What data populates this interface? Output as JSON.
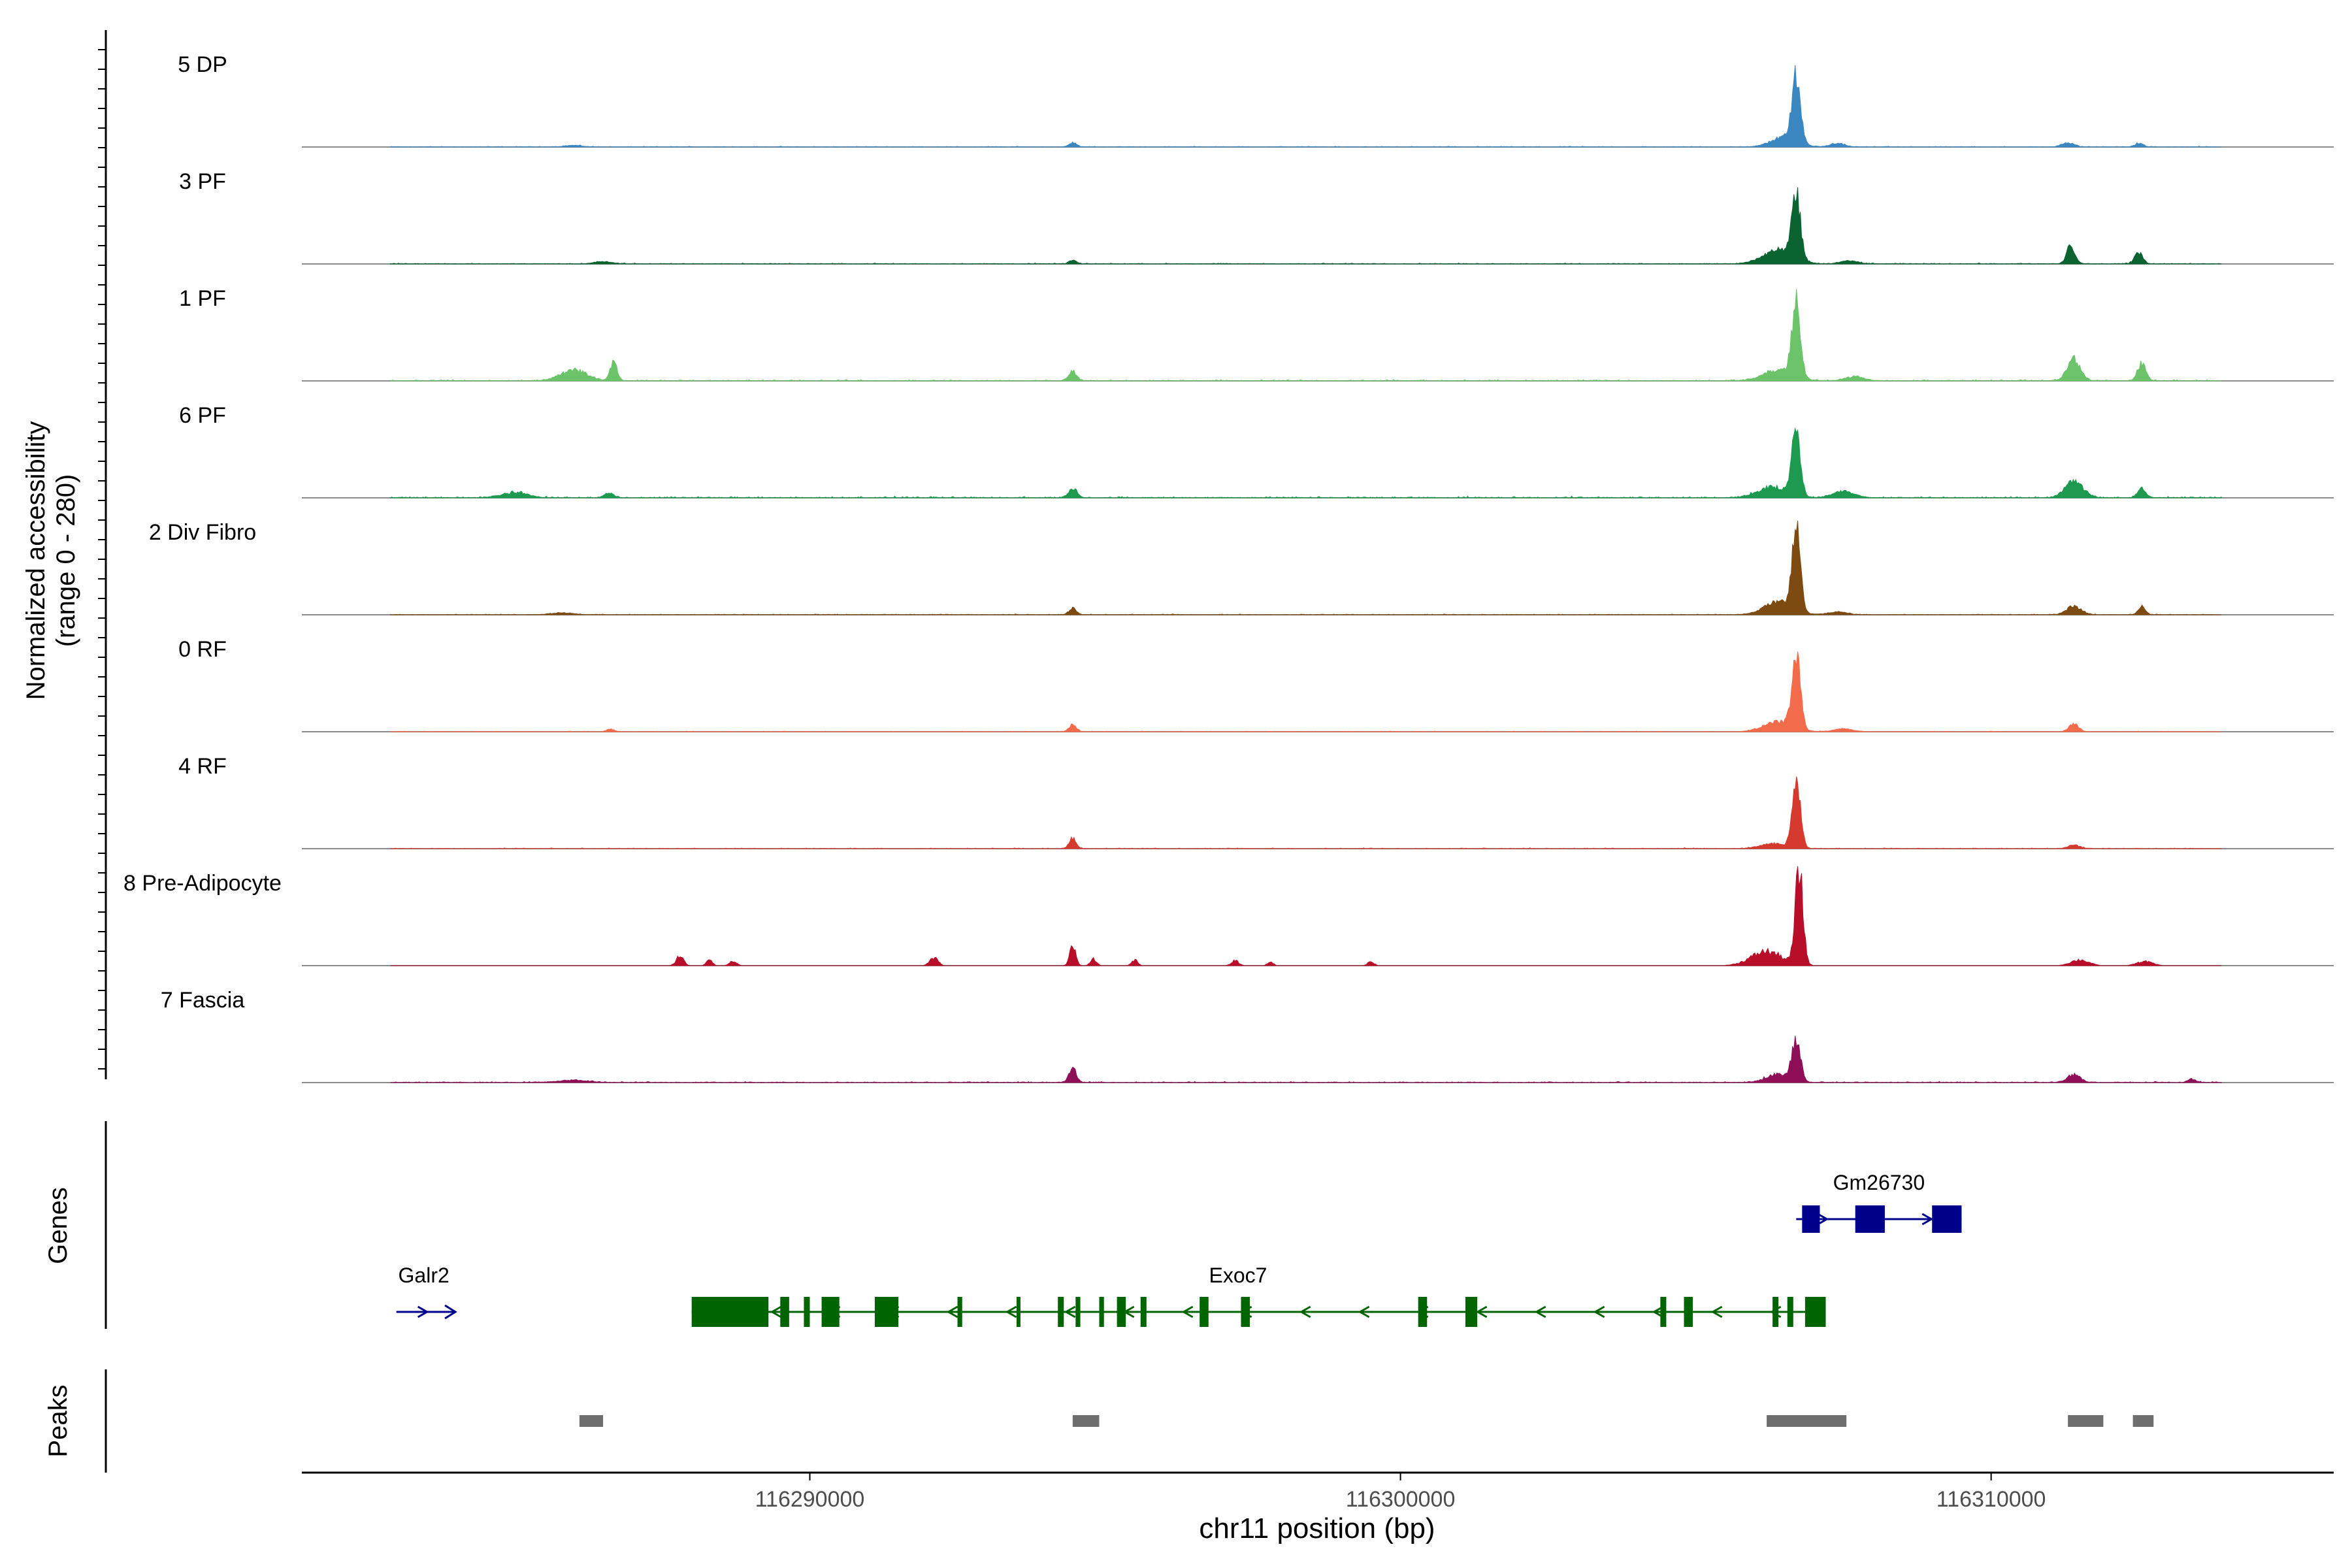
{
  "chart_data": {
    "type": "area",
    "title": "",
    "ylabel_line1": "Normalized accessibility",
    "ylabel_line2": "(range 0 - 280)",
    "ylim": [
      0,
      280
    ],
    "xlabel": "chr11 position (bp)",
    "xlim": [
      116281400,
      116315800
    ],
    "x_ticks": [
      116290000,
      116300000,
      116310000
    ],
    "x_tick_labels": [
      "116290000",
      "116300000",
      "116310000"
    ],
    "series": [
      {
        "name": "5 DP",
        "color": "#3A87C1",
        "peaks": [
          [
            116286000,
            4,
            150
          ],
          [
            116294450,
            12,
            60
          ],
          [
            116306500,
            28,
            220
          ],
          [
            116306700,
            185,
            70
          ],
          [
            116307400,
            10,
            120
          ],
          [
            116311300,
            12,
            100
          ],
          [
            116312500,
            10,
            70
          ]
        ],
        "noise": 2.2
      },
      {
        "name": "3 PF",
        "color": "#0A6330",
        "peaks": [
          [
            116286500,
            6,
            150
          ],
          [
            116294450,
            10,
            60
          ],
          [
            116306400,
            38,
            260
          ],
          [
            116306700,
            185,
            70
          ],
          [
            116307600,
            8,
            150
          ],
          [
            116311350,
            50,
            70
          ],
          [
            116312500,
            30,
            70
          ]
        ],
        "noise": 2.5
      },
      {
        "name": "1 PF",
        "color": "#6CC36A",
        "peaks": [
          [
            116286000,
            30,
            220
          ],
          [
            116286680,
            50,
            60
          ],
          [
            116294450,
            26,
            70
          ],
          [
            116306400,
            30,
            250
          ],
          [
            116306700,
            222,
            70
          ],
          [
            116307700,
            12,
            150
          ],
          [
            116311400,
            60,
            110
          ],
          [
            116312550,
            48,
            70
          ]
        ],
        "noise": 3.5
      },
      {
        "name": "6 PF",
        "color": "#1D9A50",
        "peaks": [
          [
            116285000,
            14,
            220
          ],
          [
            116286600,
            12,
            80
          ],
          [
            116294450,
            26,
            70
          ],
          [
            116306300,
            30,
            250
          ],
          [
            116306700,
            185,
            70
          ],
          [
            116307500,
            18,
            180
          ],
          [
            116311400,
            45,
            150
          ],
          [
            116312550,
            26,
            70
          ]
        ],
        "noise": 4
      },
      {
        "name": "2 Div Fibro",
        "color": "#7D4A12",
        "peaks": [
          [
            116285800,
            5,
            200
          ],
          [
            116294450,
            18,
            60
          ],
          [
            116306400,
            36,
            240
          ],
          [
            116306700,
            228,
            70
          ],
          [
            116307400,
            8,
            150
          ],
          [
            116311400,
            24,
            120
          ],
          [
            116312550,
            22,
            60
          ]
        ],
        "noise": 2.2
      },
      {
        "name": "0 RF",
        "color": "#F26B4A",
        "peaks": [
          [
            116286620,
            8,
            60
          ],
          [
            116294450,
            20,
            60
          ],
          [
            116306400,
            28,
            240
          ],
          [
            116306700,
            210,
            70
          ],
          [
            116307500,
            8,
            150
          ],
          [
            116311400,
            22,
            80
          ]
        ],
        "noise": 1.8
      },
      {
        "name": "4 RF",
        "color": "#D63A2E",
        "peaks": [
          [
            116294450,
            28,
            60
          ],
          [
            116306300,
            14,
            200
          ],
          [
            116306700,
            185,
            70
          ],
          [
            116311400,
            10,
            100
          ]
        ],
        "noise": 2.2
      },
      {
        "name": "8 Pre-Adipocyte",
        "color": "#B80E2A",
        "peaks": [
          [
            116287800,
            28,
            60
          ],
          [
            116288300,
            18,
            50
          ],
          [
            116288700,
            12,
            60
          ],
          [
            116292100,
            22,
            70
          ],
          [
            116294450,
            55,
            50
          ],
          [
            116294800,
            20,
            50
          ],
          [
            116295500,
            16,
            50
          ],
          [
            116297200,
            14,
            60
          ],
          [
            116297800,
            10,
            50
          ],
          [
            116299500,
            12,
            50
          ],
          [
            116306200,
            40,
            260
          ],
          [
            116306750,
            265,
            65
          ],
          [
            116311500,
            16,
            150
          ],
          [
            116312600,
            12,
            130
          ]
        ],
        "noise": 0,
        "gated": true
      },
      {
        "name": "7 Fascia",
        "color": "#8E0E57",
        "peaks": [
          [
            116286000,
            6,
            250
          ],
          [
            116294450,
            40,
            60
          ],
          [
            116306400,
            24,
            200
          ],
          [
            116306700,
            118,
            70
          ],
          [
            116311400,
            22,
            110
          ],
          [
            116313400,
            10,
            60
          ]
        ],
        "noise": 3
      }
    ],
    "genes_track": {
      "label": "Genes",
      "genes": [
        {
          "name": "Gm26730",
          "color": "#00008B",
          "strand": "+",
          "start": 116306700,
          "end": 116309500,
          "exons": [
            [
              116306800,
              116307100
            ],
            [
              116307700,
              116308200
            ],
            [
              116309000,
              116309500
            ]
          ]
        },
        {
          "name": "Galr2",
          "color": "#00008B",
          "strand": "+",
          "start": 116283000,
          "end": 116284000,
          "exons": []
        },
        {
          "name": "Exoc7",
          "color": "#006400",
          "strand": "-",
          "start": 116288000,
          "end": 116307200,
          "exons": [
            [
              116288000,
              116289300
            ],
            [
              116289500,
              116289650
            ],
            [
              116289900,
              116290000
            ],
            [
              116290200,
              116290500
            ],
            [
              116291100,
              116291500
            ],
            [
              116292500,
              116292580
            ],
            [
              116293500,
              116293560
            ],
            [
              116294200,
              116294300
            ],
            [
              116294500,
              116294580
            ],
            [
              116294900,
              116294980
            ],
            [
              116295200,
              116295350
            ],
            [
              116295600,
              116295700
            ],
            [
              116296600,
              116296750
            ],
            [
              116297300,
              116297450
            ],
            [
              116300300,
              116300450
            ],
            [
              116301100,
              116301300
            ],
            [
              116304400,
              116304500
            ],
            [
              116304800,
              116304950
            ],
            [
              116306300,
              116306400
            ],
            [
              116306550,
              116306650
            ],
            [
              116306850,
              116307200
            ]
          ]
        }
      ]
    },
    "peaks_track": {
      "label": "Peaks",
      "color": "#6E6E6E",
      "regions": [
        [
          116286100,
          116286500
        ],
        [
          116294450,
          116294900
        ],
        [
          116306200,
          116307550
        ],
        [
          116311300,
          116311900
        ],
        [
          116312400,
          116312750
        ]
      ]
    }
  }
}
